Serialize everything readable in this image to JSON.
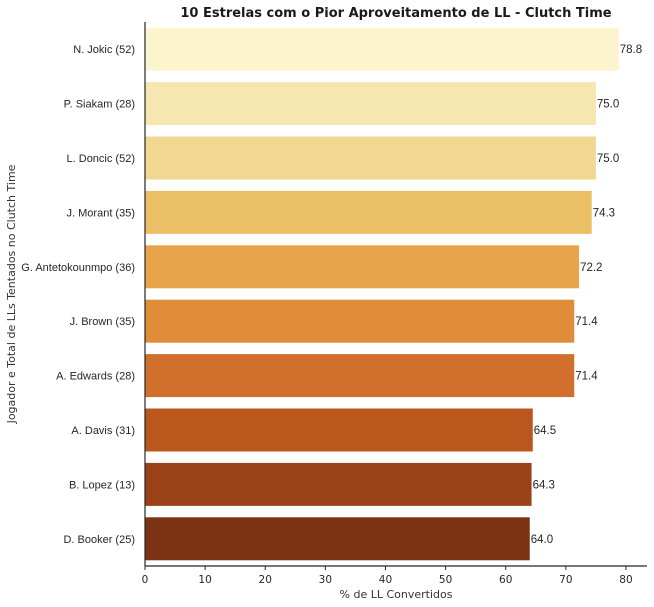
{
  "chart_data": {
    "type": "bar",
    "orientation": "horizontal",
    "title": "10 Estrelas com o Pior Aproveitamento de LL - Clutch Time",
    "xlabel": "% de LL Convertidos",
    "ylabel": "Jogador e Total de LLs Tentados no Clutch Time",
    "categories": [
      "N. Jokic (52)",
      "P. Siakam (28)",
      "L. Doncic (52)",
      "J. Morant (35)",
      "G. Antetokounmpo (36)",
      "J. Brown (35)",
      "A. Edwards (28)",
      "A. Davis (31)",
      "B. Lopez (13)",
      "D. Booker (25)"
    ],
    "values": [
      78.8,
      75.0,
      75.0,
      74.3,
      72.2,
      71.4,
      71.4,
      64.5,
      64.3,
      64.0
    ],
    "value_labels": [
      "78.8",
      "75.0",
      "75.0",
      "74.3",
      "72.2",
      "71.4",
      "71.4",
      "64.5",
      "64.3",
      "64.0"
    ],
    "colors": [
      "#fbf4cd",
      "#f6e6b0",
      "#f0d890",
      "#ebbf66",
      "#e8a44a",
      "#df8d39",
      "#d0702c",
      "#b9571c",
      "#9b4318",
      "#7b3314"
    ],
    "xlim": [
      0,
      83.5
    ],
    "xticks": [
      0,
      10,
      20,
      30,
      40,
      50,
      60,
      70,
      80
    ],
    "xtick_labels": [
      "0",
      "10",
      "20",
      "30",
      "40",
      "50",
      "60",
      "70",
      "80"
    ],
    "grid": false
  }
}
